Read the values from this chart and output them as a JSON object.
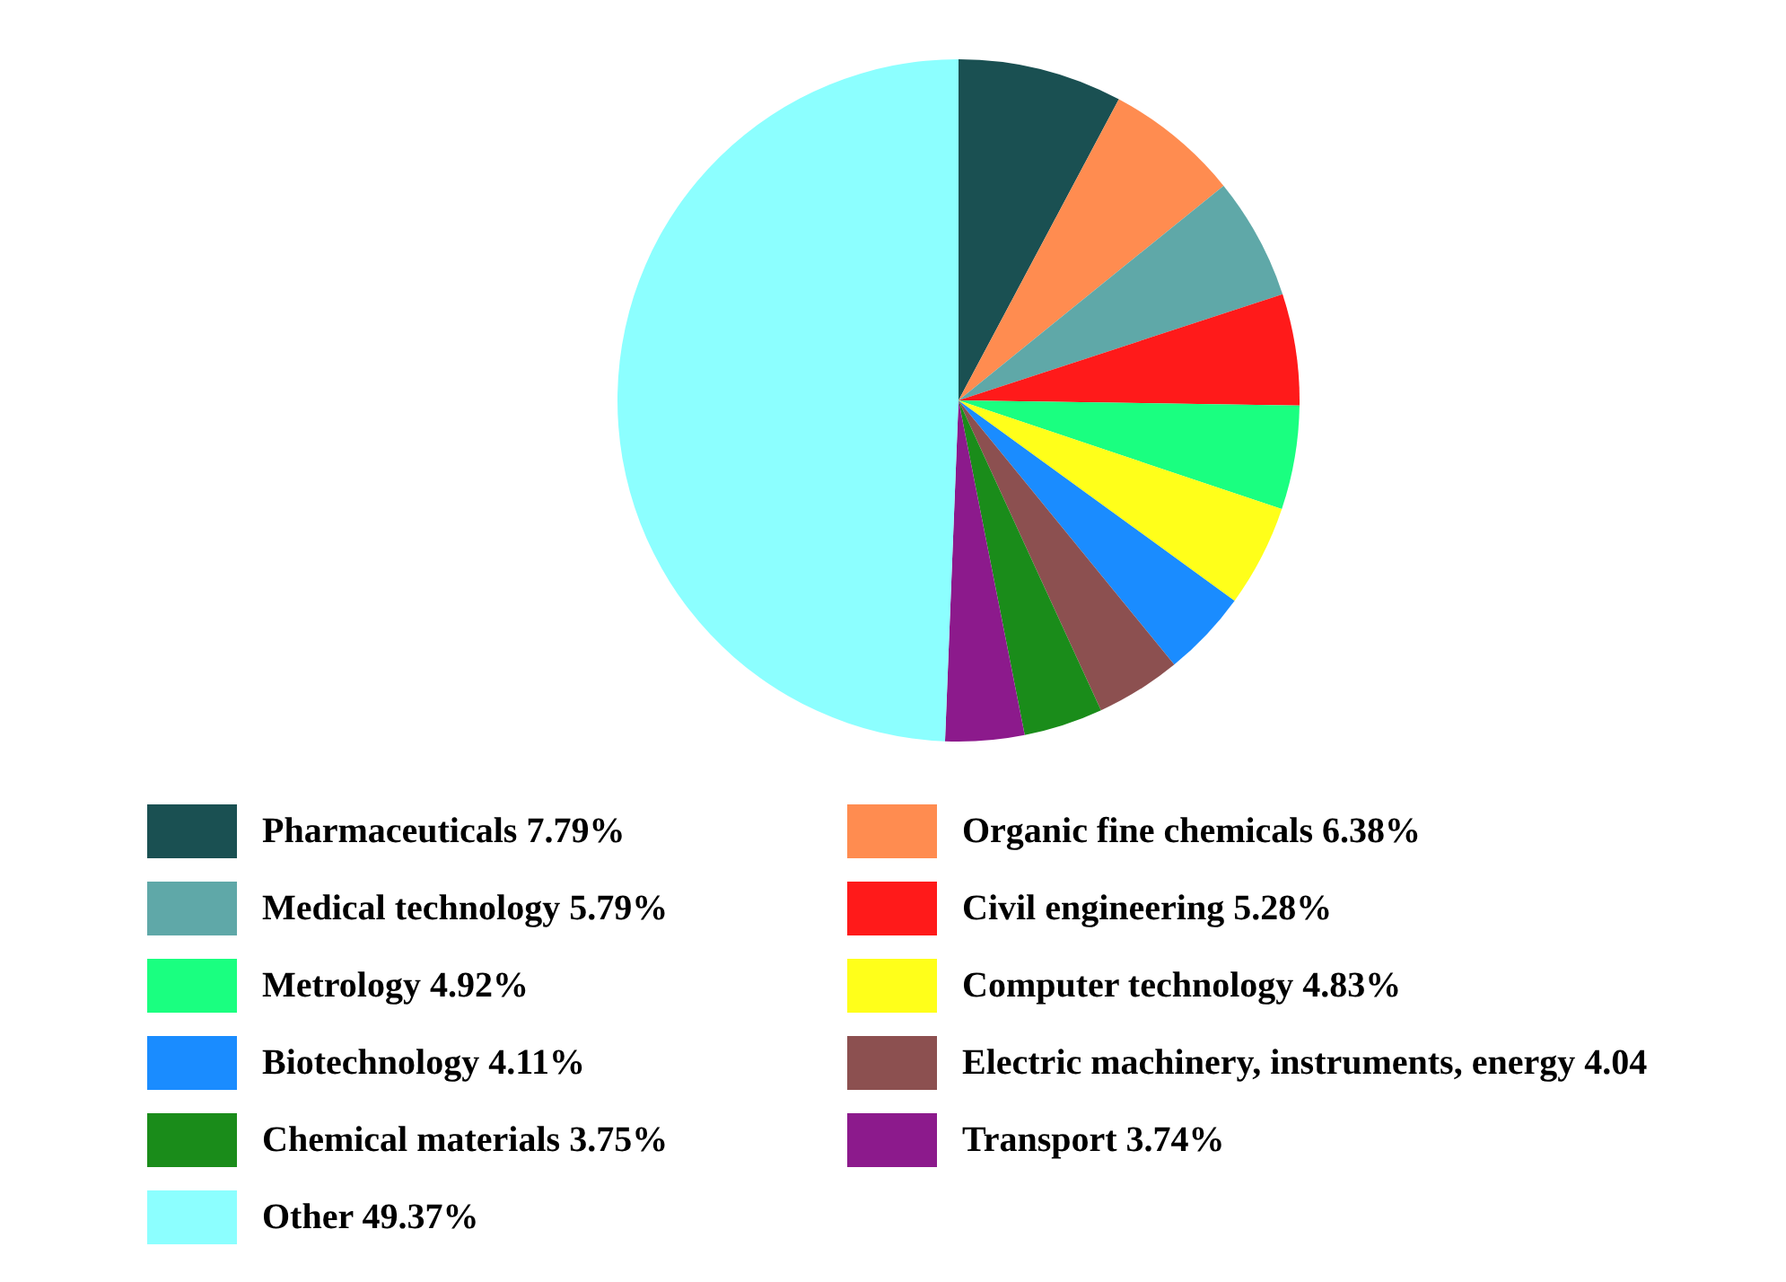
{
  "chart_data": {
    "type": "pie",
    "categories": [
      "Pharmaceuticals",
      "Organic fine chemicals",
      "Medical technology",
      "Civil engineering",
      "Metrology",
      "Computer technology",
      "Biotechnology",
      "Electric machinery, instruments, energy",
      "Chemical materials",
      "Transport",
      "Other"
    ],
    "values": [
      7.79,
      6.38,
      5.79,
      5.28,
      4.92,
      4.83,
      4.11,
      4.04,
      3.75,
      3.74,
      49.37
    ],
    "value_labels": [
      "7.79%",
      "6.38%",
      "5.79%",
      "5.28%",
      "4.92%",
      "4.83%",
      "4.11%",
      "4.04",
      "3.75%",
      "3.74%",
      "49.37%"
    ],
    "colors": [
      "#1a5052",
      "#ff8c50",
      "#5fa8a8",
      "#ff1a1a",
      "#1aff80",
      "#ffff1a",
      "#1a8cff",
      "#8c5050",
      "#1a8c1a",
      "#8c1a8c",
      "#8cffff"
    ],
    "legend": "bottom"
  }
}
